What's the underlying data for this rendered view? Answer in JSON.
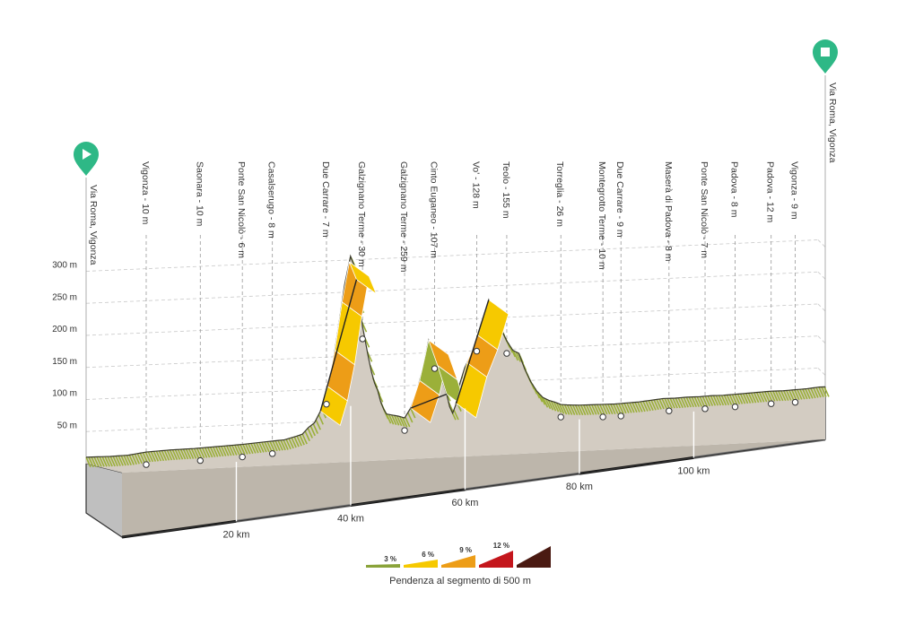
{
  "chart_data": {
    "type": "area",
    "ylim": [
      0,
      310
    ],
    "xlim": [
      0,
      123
    ],
    "y_ticks": [
      {
        "value": 50,
        "label": "50 m"
      },
      {
        "value": 100,
        "label": "100 m"
      },
      {
        "value": 150,
        "label": "150 m"
      },
      {
        "value": 200,
        "label": "200 m"
      },
      {
        "value": 250,
        "label": "250 m"
      },
      {
        "value": 300,
        "label": "300 m"
      }
    ],
    "x_ticks": [
      {
        "value": 20,
        "label": "20 km"
      },
      {
        "value": 40,
        "label": "40 km"
      },
      {
        "value": 60,
        "label": "60 km"
      },
      {
        "value": 80,
        "label": "80 km"
      },
      {
        "value": 100,
        "label": "100 km"
      }
    ],
    "elevation_profile": [
      [
        0,
        10
      ],
      [
        4,
        10
      ],
      [
        7,
        11
      ],
      [
        10,
        15
      ],
      [
        14,
        17
      ],
      [
        18,
        18
      ],
      [
        22,
        20
      ],
      [
        26,
        22
      ],
      [
        30,
        25
      ],
      [
        33,
        27
      ],
      [
        35,
        32
      ],
      [
        36,
        35
      ],
      [
        37,
        45
      ],
      [
        38,
        52
      ],
      [
        39,
        70
      ],
      [
        40,
        100
      ],
      [
        41,
        140
      ],
      [
        42,
        200
      ],
      [
        43,
        265
      ],
      [
        44,
        310
      ],
      [
        44.8,
        290
      ],
      [
        45.4,
        240
      ],
      [
        46,
        200
      ],
      [
        47,
        150
      ],
      [
        47.8,
        115
      ],
      [
        48.5,
        100
      ],
      [
        49.2,
        75
      ],
      [
        50,
        62
      ],
      [
        51,
        60
      ],
      [
        52,
        58
      ],
      [
        53,
        55
      ],
      [
        54,
        70
      ],
      [
        55,
        95
      ],
      [
        56,
        130
      ],
      [
        57,
        175
      ],
      [
        58,
        150
      ],
      [
        59,
        120
      ],
      [
        60,
        90
      ],
      [
        60.5,
        70
      ],
      [
        61,
        60
      ],
      [
        61.6,
        75
      ],
      [
        62,
        100
      ],
      [
        63,
        130
      ],
      [
        64,
        150
      ],
      [
        65,
        175
      ],
      [
        66,
        200
      ],
      [
        67,
        235
      ],
      [
        68,
        215
      ],
      [
        69,
        190
      ],
      [
        70,
        170
      ],
      [
        71,
        155
      ],
      [
        72,
        150
      ],
      [
        73,
        125
      ],
      [
        74,
        105
      ],
      [
        75,
        90
      ],
      [
        76,
        80
      ],
      [
        77,
        75
      ],
      [
        78,
        72
      ],
      [
        79,
        68
      ],
      [
        80,
        67
      ],
      [
        82,
        66
      ],
      [
        84,
        66
      ],
      [
        86,
        66
      ],
      [
        88,
        66
      ],
      [
        90,
        67
      ],
      [
        92,
        68
      ],
      [
        94,
        70
      ],
      [
        96,
        72
      ],
      [
        98,
        72
      ],
      [
        100,
        73
      ],
      [
        102,
        73
      ],
      [
        104,
        74
      ],
      [
        106,
        74
      ],
      [
        108,
        75
      ],
      [
        110,
        76
      ],
      [
        112,
        77
      ],
      [
        114,
        78
      ],
      [
        116,
        78
      ],
      [
        118,
        79
      ],
      [
        120,
        80
      ],
      [
        122,
        82
      ],
      [
        123,
        82
      ]
    ],
    "climbs": [
      {
        "from": 39,
        "to": 45,
        "gradient_colors": [
          "#f6c900",
          "#ed9d17",
          "#f6c900",
          "#ed9d17",
          "#f6c900"
        ]
      },
      {
        "from": 54,
        "to": 60,
        "gradient_colors": [
          "#ed9d17",
          "#9bb039",
          "#ed9d17",
          "#9bb039"
        ]
      },
      {
        "from": 61.6,
        "to": 67,
        "gradient_colors": [
          "#f6c900",
          "#ed9d17",
          "#f6c900"
        ]
      }
    ],
    "start": {
      "label": "Via Roma, Vigonza"
    },
    "finish": {
      "label": "Via Roma, Vigonza"
    },
    "waypoints": [
      {
        "km": 10,
        "label": "Vigonza - 10 m"
      },
      {
        "km": 19,
        "label": "Saonara - 10 m"
      },
      {
        "km": 26,
        "label": "Ponte San Nicolò - 6 m"
      },
      {
        "km": 31,
        "label": "Casalserugo - 8 m"
      },
      {
        "km": 40,
        "label": "Due Carrare - 7 m"
      },
      {
        "km": 46,
        "label": "Galzignano Terme - 30 m"
      },
      {
        "km": 53,
        "label": "Galzignano Terme - 259 m"
      },
      {
        "km": 58,
        "label": "Cinto Euganeo - 107 m"
      },
      {
        "km": 65,
        "label": "Vo' - 128 m"
      },
      {
        "km": 70,
        "label": "Teolo - 155 m"
      },
      {
        "km": 79,
        "label": "Torreglia - 26 m"
      },
      {
        "km": 86,
        "label": "Montegrotto Terme - 10 m"
      },
      {
        "km": 89,
        "label": "Due Carrare - 9 m"
      },
      {
        "km": 97,
        "label": "Maserà di Padova - 8 m"
      },
      {
        "km": 103,
        "label": "Ponte San Nicolò - 7 m"
      },
      {
        "km": 108,
        "label": "Padova - 8 m"
      },
      {
        "km": 114,
        "label": "Padova - 12 m"
      },
      {
        "km": 118,
        "label": "Vigonza - 9 m"
      }
    ],
    "legend": {
      "title": "Pendenza al segmento di 500 m",
      "items": [
        {
          "label": "3 %",
          "color": "#8aa33a"
        },
        {
          "label": "6 %",
          "color": "#f6c900"
        },
        {
          "label": "9 %",
          "color": "#ed9d17"
        },
        {
          "label": "12 %",
          "color": "#c4161c"
        },
        {
          "label": "",
          "color": "#4a1a12"
        }
      ]
    },
    "colors": {
      "ground": "#d3ccc2",
      "ground_dark": "#bdb6ab",
      "box_side": "#bfbfbf",
      "flat_green": "#9bb039",
      "marker": "#2eb886"
    }
  }
}
